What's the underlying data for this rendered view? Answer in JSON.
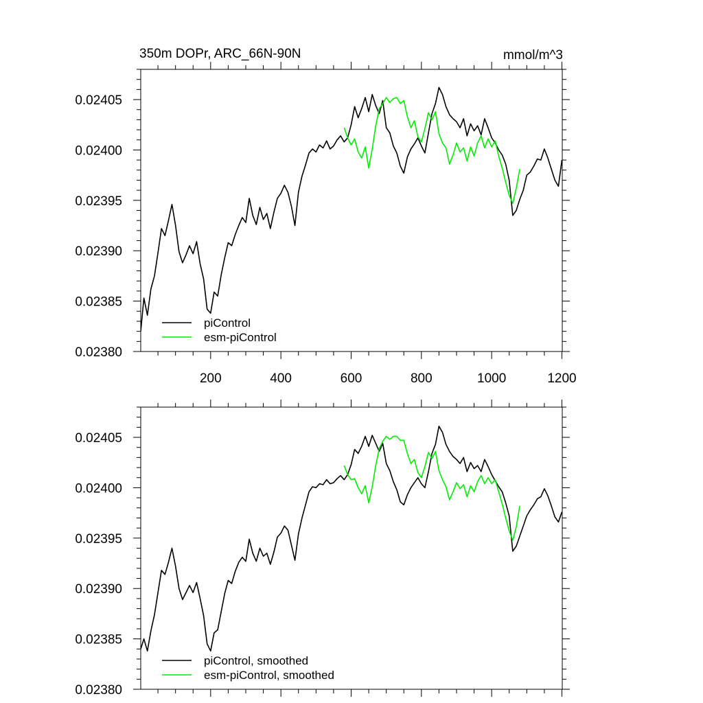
{
  "figure": {
    "title_left": "350m DOPr, ARC_66N-90N",
    "title_right": "mmol/m^3"
  },
  "chart_data": [
    {
      "type": "line",
      "title": "350m DOPr, ARC_66N-90N",
      "units": "mmol/m^3",
      "xlim": [
        1,
        1201
      ],
      "ylim": [
        0.0238,
        0.02408
      ],
      "x_ticks": [
        200,
        400,
        600,
        800,
        1000,
        1200
      ],
      "x_tick_labels": [
        "200",
        "400",
        "600",
        "800",
        "1000",
        "1200"
      ],
      "y_ticks": [
        0.0238,
        0.02385,
        0.0239,
        0.02395,
        0.024,
        0.02405
      ],
      "y_tick_labels": [
        "0.02380",
        "0.02385",
        "0.02390",
        "0.02395",
        "0.02400",
        "0.02405"
      ],
      "legend_position": "bottom-left",
      "series": [
        {
          "name": "piControl",
          "color": "#000000",
          "x": [
            1,
            10,
            20,
            30,
            40,
            50,
            60,
            70,
            80,
            90,
            100,
            110,
            120,
            130,
            140,
            150,
            160,
            170,
            180,
            190,
            200,
            210,
            220,
            230,
            240,
            250,
            260,
            270,
            280,
            290,
            300,
            310,
            320,
            330,
            340,
            350,
            360,
            370,
            380,
            390,
            400,
            410,
            420,
            430,
            440,
            450,
            460,
            470,
            480,
            490,
            500,
            510,
            520,
            530,
            540,
            550,
            560,
            570,
            580,
            590,
            600,
            610,
            620,
            630,
            640,
            650,
            660,
            670,
            680,
            690,
            700,
            710,
            720,
            730,
            740,
            750,
            760,
            770,
            780,
            790,
            800,
            810,
            820,
            830,
            840,
            850,
            860,
            870,
            880,
            890,
            900,
            910,
            920,
            930,
            940,
            950,
            960,
            970,
            980,
            990,
            1000,
            1010,
            1020,
            1030,
            1040,
            1050,
            1060,
            1070,
            1080,
            1090,
            1100,
            1110,
            1120,
            1130,
            1140,
            1150,
            1160,
            1170,
            1180,
            1190,
            1200
          ],
          "y": [
            0.02382,
            0.023853,
            0.023836,
            0.023862,
            0.023875,
            0.023898,
            0.023922,
            0.023915,
            0.02393,
            0.023946,
            0.023925,
            0.023899,
            0.023888,
            0.023896,
            0.023905,
            0.023897,
            0.023909,
            0.023887,
            0.023872,
            0.023842,
            0.023838,
            0.023859,
            0.023855,
            0.023876,
            0.023893,
            0.023908,
            0.023905,
            0.023916,
            0.023925,
            0.023933,
            0.023928,
            0.023952,
            0.023935,
            0.023926,
            0.023943,
            0.023931,
            0.023937,
            0.023922,
            0.023938,
            0.023952,
            0.023957,
            0.023965,
            0.023958,
            0.023944,
            0.023925,
            0.023958,
            0.023974,
            0.023985,
            0.023997,
            0.024001,
            0.023998,
            0.024005,
            0.024002,
            0.024009,
            0.024001,
            0.024004,
            0.02401,
            0.024014,
            0.024008,
            0.024012,
            0.024025,
            0.024043,
            0.024032,
            0.024041,
            0.024052,
            0.024038,
            0.024055,
            0.024044,
            0.024036,
            0.024049,
            0.024022,
            0.024017,
            0.024004,
            0.023997,
            0.023984,
            0.023977,
            0.023993,
            0.024001,
            0.024006,
            0.024012,
            0.024004,
            0.023997,
            0.024017,
            0.024036,
            0.024046,
            0.024062,
            0.024055,
            0.024043,
            0.024035,
            0.024031,
            0.024028,
            0.024022,
            0.024031,
            0.024014,
            0.024026,
            0.024019,
            0.024024,
            0.024015,
            0.024031,
            0.024022,
            0.024012,
            0.024007,
            0.024,
            0.023995,
            0.023986,
            0.02397,
            0.023935,
            0.02394,
            0.023951,
            0.02396,
            0.023975,
            0.023978,
            0.023984,
            0.023991,
            0.02399,
            0.024001,
            0.023992,
            0.023981,
            0.02397,
            0.023964,
            0.02399
          ]
        },
        {
          "name": "esm-piControl",
          "color": "#00ee00",
          "x": [
            580,
            590,
            600,
            610,
            620,
            630,
            640,
            650,
            660,
            670,
            680,
            690,
            700,
            710,
            720,
            730,
            740,
            750,
            760,
            770,
            780,
            790,
            800,
            810,
            820,
            830,
            840,
            850,
            860,
            870,
            880,
            890,
            900,
            910,
            920,
            930,
            940,
            950,
            960,
            970,
            980,
            990,
            1000,
            1010,
            1020,
            1030,
            1040,
            1050,
            1060,
            1070,
            1080
          ],
          "y": [
            0.024022,
            0.024012,
            0.024005,
            0.024011,
            0.023998,
            0.023992,
            0.024003,
            0.023982,
            0.024001,
            0.024024,
            0.024041,
            0.024046,
            0.024052,
            0.024047,
            0.024051,
            0.024052,
            0.024046,
            0.024049,
            0.024033,
            0.024022,
            0.024029,
            0.024013,
            0.024008,
            0.024021,
            0.024037,
            0.02403,
            0.024038,
            0.024016,
            0.024007,
            0.024002,
            0.023986,
            0.023995,
            0.024007,
            0.023998,
            0.024002,
            0.023989,
            0.024003,
            0.023994,
            0.024007,
            0.024014,
            0.024002,
            0.024011,
            0.024003,
            0.024009,
            0.023994,
            0.023982,
            0.023968,
            0.023955,
            0.023947,
            0.023962,
            0.023981
          ]
        }
      ]
    },
    {
      "type": "line",
      "xlim": [
        1,
        1201
      ],
      "ylim": [
        0.0238,
        0.02408
      ],
      "y_ticks": [
        0.0238,
        0.02385,
        0.0239,
        0.02395,
        0.024,
        0.02405
      ],
      "y_tick_labels": [
        "0.02380",
        "0.02385",
        "0.02390",
        "0.02395",
        "0.02400",
        "0.02405"
      ],
      "legend_position": "bottom-left",
      "series": [
        {
          "name": "piControl, smoothed",
          "color": "#000000",
          "x": [
            1,
            10,
            20,
            30,
            40,
            50,
            60,
            70,
            80,
            90,
            100,
            110,
            120,
            130,
            140,
            150,
            160,
            170,
            180,
            190,
            200,
            210,
            220,
            230,
            240,
            250,
            260,
            270,
            280,
            290,
            300,
            310,
            320,
            330,
            340,
            350,
            360,
            370,
            380,
            390,
            400,
            410,
            420,
            430,
            440,
            450,
            460,
            470,
            480,
            490,
            500,
            510,
            520,
            530,
            540,
            550,
            560,
            570,
            580,
            590,
            600,
            610,
            620,
            630,
            640,
            650,
            660,
            670,
            680,
            690,
            700,
            710,
            720,
            730,
            740,
            750,
            760,
            770,
            780,
            790,
            800,
            810,
            820,
            830,
            840,
            850,
            860,
            870,
            880,
            890,
            900,
            910,
            920,
            930,
            940,
            950,
            960,
            970,
            980,
            990,
            1000,
            1010,
            1020,
            1030,
            1040,
            1050,
            1060,
            1070,
            1080,
            1090,
            1100,
            1110,
            1120,
            1130,
            1140,
            1150,
            1160,
            1170,
            1180,
            1190,
            1200
          ],
          "y": [
            0.02384,
            0.02385,
            0.023838,
            0.023858,
            0.023874,
            0.023896,
            0.023918,
            0.023914,
            0.023926,
            0.02394,
            0.023922,
            0.0239,
            0.023889,
            0.023896,
            0.023903,
            0.023896,
            0.023906,
            0.02389,
            0.023873,
            0.023845,
            0.023838,
            0.023856,
            0.023859,
            0.023877,
            0.023895,
            0.023908,
            0.023905,
            0.023917,
            0.023926,
            0.023931,
            0.023927,
            0.023949,
            0.023935,
            0.023927,
            0.02394,
            0.023932,
            0.023935,
            0.023924,
            0.023936,
            0.023951,
            0.023955,
            0.023962,
            0.023958,
            0.023943,
            0.023928,
            0.023954,
            0.02397,
            0.023983,
            0.023996,
            0.024001,
            0.024,
            0.024004,
            0.024003,
            0.024008,
            0.024004,
            0.024005,
            0.024009,
            0.024012,
            0.024008,
            0.024013,
            0.024023,
            0.024038,
            0.024034,
            0.024041,
            0.024051,
            0.024041,
            0.024052,
            0.024044,
            0.024036,
            0.024044,
            0.024024,
            0.024017,
            0.024006,
            0.023998,
            0.023986,
            0.023983,
            0.023993,
            0.024,
            0.024005,
            0.02401,
            0.024004,
            0.024,
            0.024016,
            0.024034,
            0.024043,
            0.024061,
            0.024055,
            0.024043,
            0.024036,
            0.024031,
            0.024028,
            0.024024,
            0.02403,
            0.024016,
            0.024025,
            0.024019,
            0.024022,
            0.024016,
            0.024028,
            0.024021,
            0.024013,
            0.024007,
            0.024001,
            0.023996,
            0.023985,
            0.023972,
            0.023937,
            0.023942,
            0.023952,
            0.023962,
            0.023972,
            0.023978,
            0.023983,
            0.023989,
            0.023991,
            0.023999,
            0.023992,
            0.023982,
            0.023971,
            0.023966,
            0.023976
          ]
        },
        {
          "name": "esm-piControl, smoothed",
          "color": "#00ee00",
          "x": [
            580,
            590,
            600,
            610,
            620,
            630,
            640,
            650,
            660,
            670,
            680,
            690,
            700,
            710,
            720,
            730,
            740,
            750,
            760,
            770,
            780,
            790,
            800,
            810,
            820,
            830,
            840,
            850,
            860,
            870,
            880,
            890,
            900,
            910,
            920,
            930,
            940,
            950,
            960,
            970,
            980,
            990,
            1000,
            1010,
            1020,
            1030,
            1040,
            1050,
            1060,
            1070,
            1080
          ],
          "y": [
            0.024022,
            0.024013,
            0.024008,
            0.024009,
            0.024,
            0.023994,
            0.024002,
            0.023985,
            0.024001,
            0.024022,
            0.024039,
            0.024046,
            0.024051,
            0.024048,
            0.024051,
            0.024051,
            0.024047,
            0.024047,
            0.024034,
            0.024024,
            0.024028,
            0.024015,
            0.02401,
            0.024021,
            0.024035,
            0.024029,
            0.024036,
            0.024017,
            0.024008,
            0.024001,
            0.023988,
            0.023996,
            0.024005,
            0.023999,
            0.024003,
            0.023991,
            0.024002,
            0.023996,
            0.024006,
            0.024012,
            0.024004,
            0.02401,
            0.024004,
            0.024008,
            0.023996,
            0.023984,
            0.02397,
            0.023957,
            0.023948,
            0.023961,
            0.023982
          ]
        }
      ]
    }
  ]
}
